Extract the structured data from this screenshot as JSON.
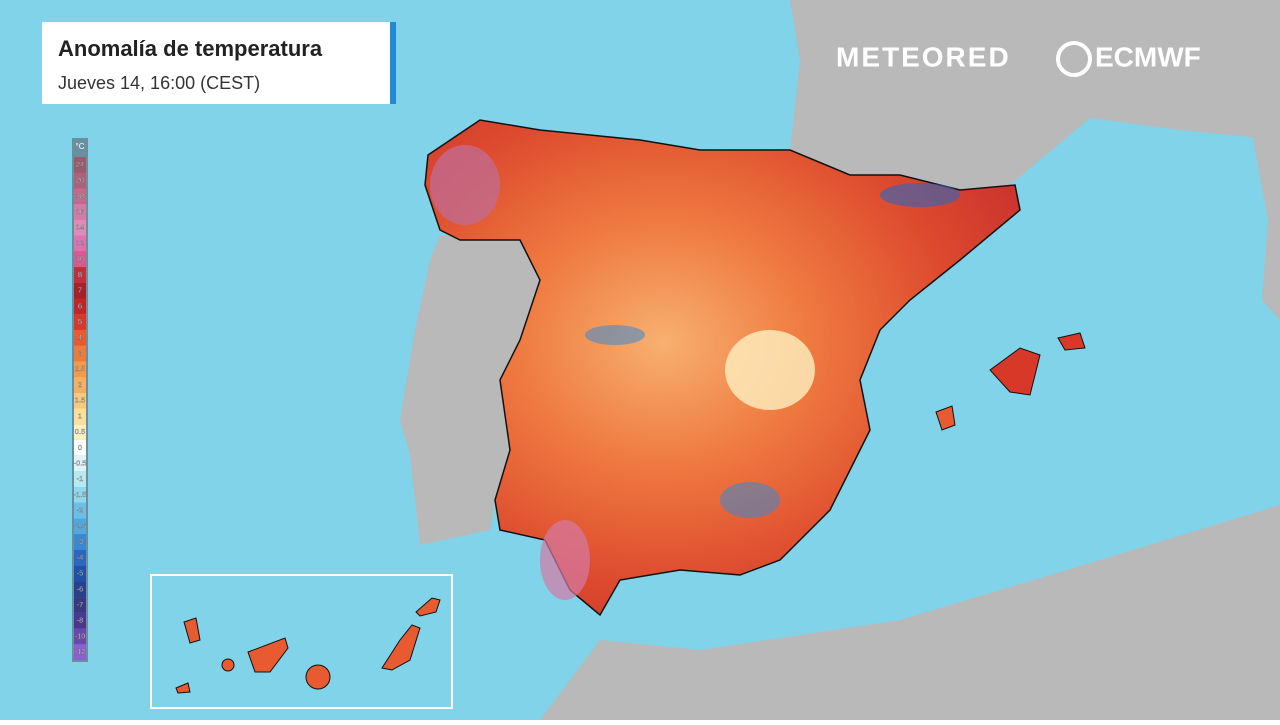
{
  "header": {
    "title": "Anomalía de temperatura",
    "subtitle": "Jueves 14, 16:00 (CEST)"
  },
  "brands": [
    "METEORED",
    "ECMWF"
  ],
  "legend": {
    "unit": "°C",
    "items": [
      {
        "label": "24",
        "color": "#9c5a6a"
      },
      {
        "label": "20",
        "color": "#b0607a"
      },
      {
        "label": "18",
        "color": "#c26a8e"
      },
      {
        "label": "16",
        "color": "#d47aa5"
      },
      {
        "label": "14",
        "color": "#e08ab8"
      },
      {
        "label": "12",
        "color": "#e070b0"
      },
      {
        "label": "10",
        "color": "#d85a90"
      },
      {
        "label": "8",
        "color": "#c0303a"
      },
      {
        "label": "7",
        "color": "#a82028"
      },
      {
        "label": "6",
        "color": "#c02828"
      },
      {
        "label": "5",
        "color": "#d83828"
      },
      {
        "label": "4",
        "color": "#e85a30"
      },
      {
        "label": "3",
        "color": "#f07a38"
      },
      {
        "label": "2.5",
        "color": "#f59a48"
      },
      {
        "label": "2",
        "color": "#f8b060"
      },
      {
        "label": "1.5",
        "color": "#fac87a"
      },
      {
        "label": "1",
        "color": "#fce09a"
      },
      {
        "label": "0.5",
        "color": "#fef0c0"
      },
      {
        "label": "0",
        "color": "#ffffff"
      },
      {
        "label": "-0.5",
        "color": "#e0f4f8"
      },
      {
        "label": "-1",
        "color": "#b8e8f0"
      },
      {
        "label": "-1.5",
        "color": "#90d8ec"
      },
      {
        "label": "-2",
        "color": "#6cc0e8"
      },
      {
        "label": "-2.5",
        "color": "#50a8e0"
      },
      {
        "label": "-3",
        "color": "#3a88d0"
      },
      {
        "label": "-4",
        "color": "#2c68c0"
      },
      {
        "label": "-5",
        "color": "#2050a8"
      },
      {
        "label": "-6",
        "color": "#284090"
      },
      {
        "label": "-7",
        "color": "#383880"
      },
      {
        "label": "-8",
        "color": "#4a3890"
      },
      {
        "label": "-10",
        "color": "#6a48b0"
      },
      {
        "label": "-12",
        "color": "#8a60d0"
      }
    ]
  }
}
